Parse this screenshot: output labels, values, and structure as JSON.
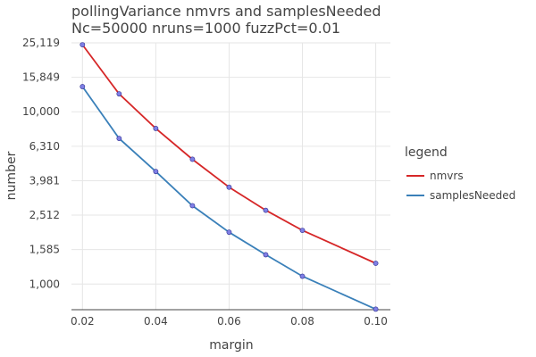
{
  "chart_data": {
    "type": "line",
    "title": "pollingVariance nmvrs and samplesNeeded",
    "subtitle": "Nc=50000 nruns=1000 fuzzPct=0.01",
    "xlabel": "margin",
    "ylabel": "number",
    "x": [
      0.02,
      0.03,
      0.04,
      0.05,
      0.06,
      0.07,
      0.08,
      0.1
    ],
    "xlim": [
      0.017,
      0.104
    ],
    "x_ticks": [
      0.02,
      0.04,
      0.06,
      0.08,
      0.1
    ],
    "x_tick_labels": [
      "0.02",
      "0.04",
      "0.06",
      "0.08",
      "0.10"
    ],
    "y_scale": "log",
    "ylim": [
      710,
      25119
    ],
    "y_ticks": [
      1000,
      1585,
      2512,
      3981,
      6310,
      10000,
      15849,
      25119
    ],
    "y_tick_labels": [
      "1,000",
      "1,585",
      "2,512",
      "3,981",
      "6,310",
      "10,000",
      "15,849",
      "25,119"
    ],
    "grid": true,
    "legend_title": "legend",
    "legend_position": "right",
    "series": [
      {
        "name": "nmvrs",
        "color": "#d62728",
        "values": [
          24500,
          12700,
          8000,
          5300,
          3650,
          2680,
          2050,
          1320
        ]
      },
      {
        "name": "samplesNeeded",
        "color": "#3a80b9",
        "values": [
          14000,
          7000,
          4500,
          2850,
          2000,
          1480,
          1110,
          715
        ]
      }
    ],
    "marker_color": "#7f7fe5"
  }
}
